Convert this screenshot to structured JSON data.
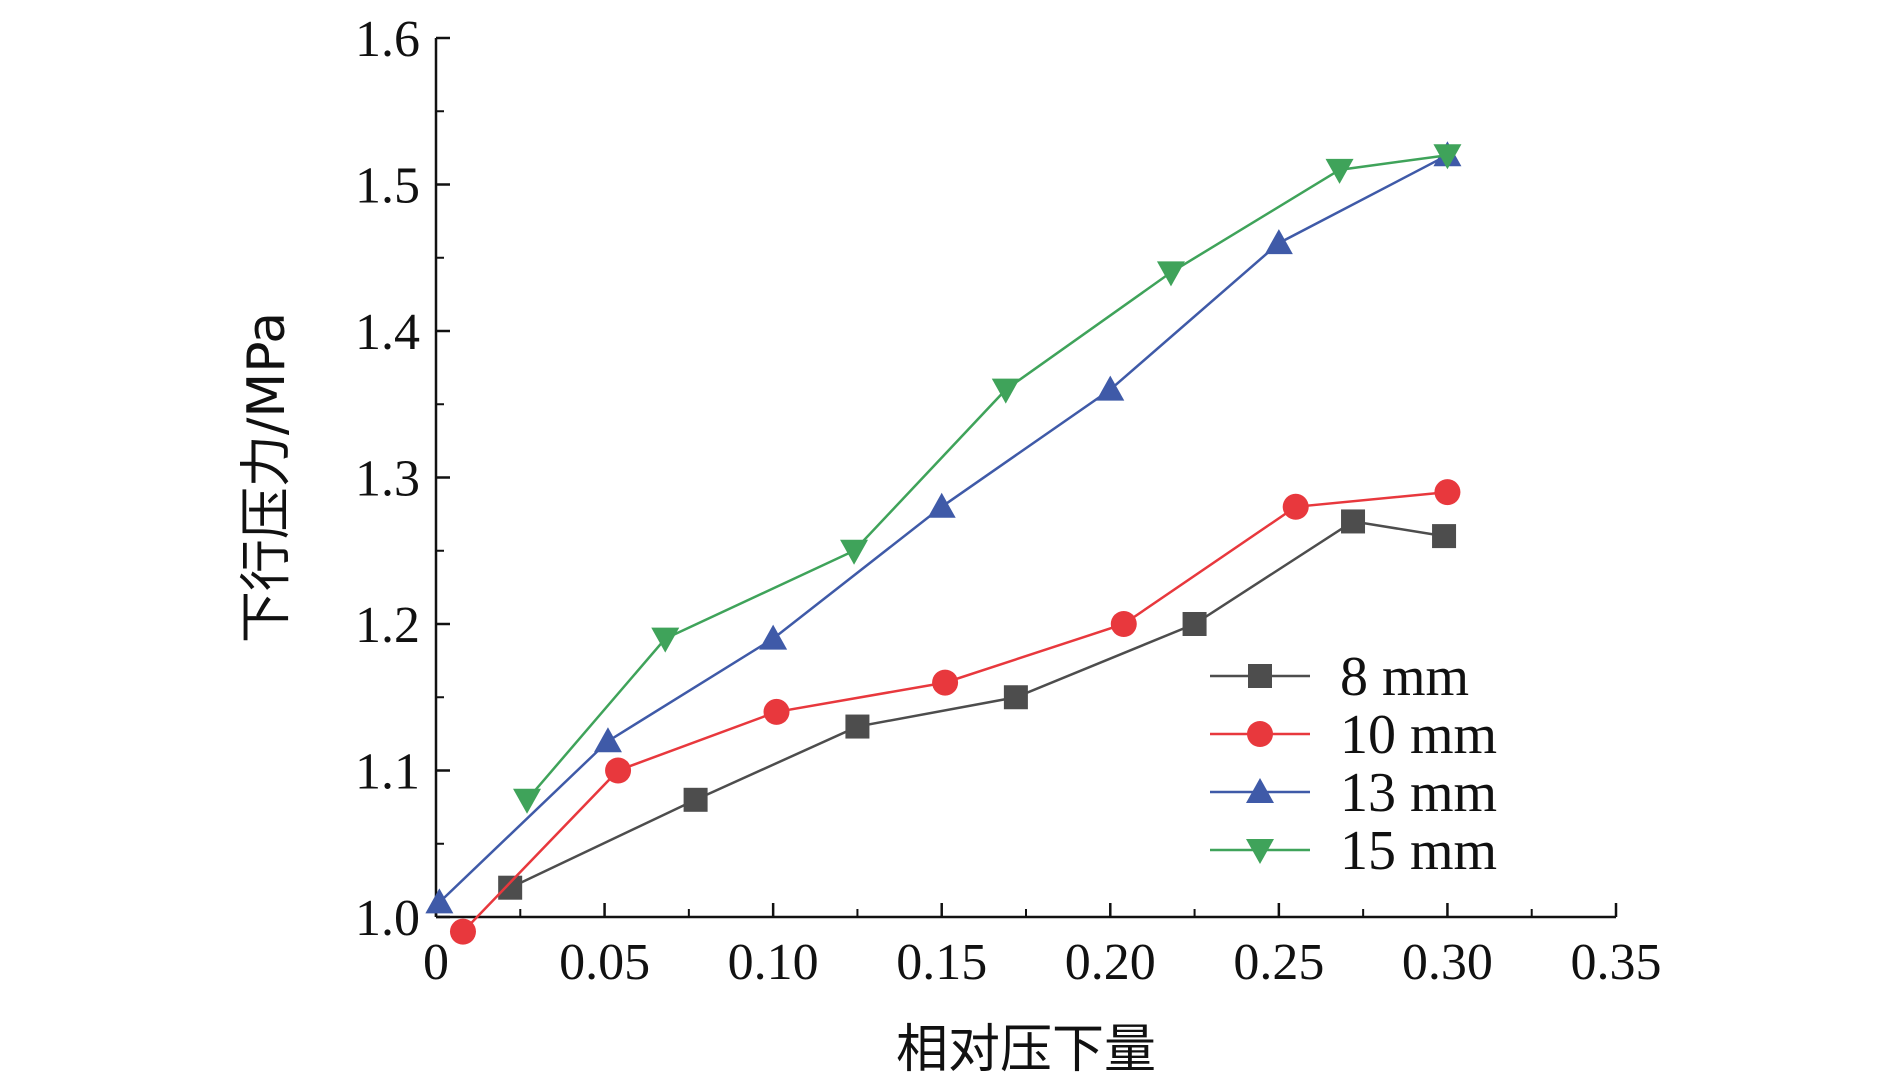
{
  "chart_data": {
    "type": "line",
    "title": "",
    "xlabel": "相对压下量",
    "ylabel": "下行压力/MPa",
    "xlim": [
      0,
      0.35
    ],
    "ylim": [
      1.0,
      1.6
    ],
    "x_ticks": [
      0,
      0.05,
      0.1,
      0.15,
      0.2,
      0.25,
      0.3,
      0.35
    ],
    "x_tick_labels": [
      "0",
      "0.05",
      "0.10",
      "0.15",
      "0.20",
      "0.25",
      "0.30",
      "0.35"
    ],
    "y_ticks": [
      1.0,
      1.1,
      1.2,
      1.3,
      1.4,
      1.5,
      1.6
    ],
    "y_tick_labels": [
      "1.0",
      "1.1",
      "1.2",
      "1.3",
      "1.4",
      "1.5",
      "1.6"
    ],
    "grid": false,
    "legend_position": "lower-right",
    "series": [
      {
        "name": "8 mm",
        "color": "#4d4d4d",
        "marker": "square",
        "x": [
          0.022,
          0.077,
          0.125,
          0.172,
          0.225,
          0.272,
          0.299
        ],
        "y": [
          1.02,
          1.08,
          1.13,
          1.15,
          1.2,
          1.27,
          1.26
        ]
      },
      {
        "name": "10 mm",
        "color": "#e8383d",
        "marker": "circle",
        "x": [
          0.008,
          0.054,
          0.101,
          0.151,
          0.204,
          0.255,
          0.3
        ],
        "y": [
          0.99,
          1.1,
          1.14,
          1.16,
          1.2,
          1.28,
          1.29
        ]
      },
      {
        "name": "13 mm",
        "color": "#3f5aa8",
        "marker": "triangle-up",
        "x": [
          0.001,
          0.051,
          0.1,
          0.15,
          0.2,
          0.25,
          0.3
        ],
        "y": [
          1.01,
          1.12,
          1.19,
          1.28,
          1.36,
          1.46,
          1.52
        ]
      },
      {
        "name": "15 mm",
        "color": "#3fa35a",
        "marker": "triangle-down",
        "x": [
          0.027,
          0.068,
          0.124,
          0.169,
          0.218,
          0.268,
          0.3
        ],
        "y": [
          1.08,
          1.19,
          1.25,
          1.36,
          1.44,
          1.51,
          1.52
        ]
      }
    ]
  }
}
